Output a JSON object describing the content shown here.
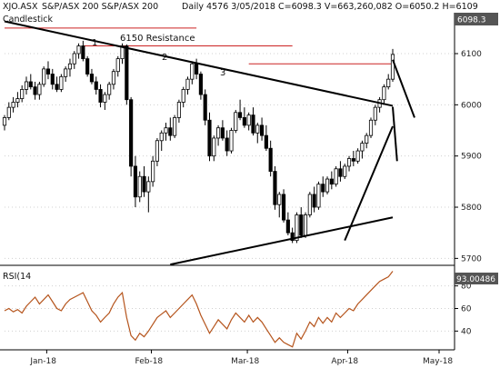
{
  "header": {
    "symbol": "XJO.ASX",
    "security": "S&P/ASX 200 S&P/ASX 200",
    "quote": "Daily 4576 3/05/2018 C=6098.3 V=663,260,082 O=6050.2 H=6109",
    "panel_label": "Candlestick"
  },
  "price_badge": "6098.3",
  "rsi_badge": "93.00486",
  "rsi_label": "RSI(14",
  "annotations": {
    "resistance_label": "6150 Resistance",
    "peak_1": "1",
    "peak_2": "2",
    "peak_3": "3"
  },
  "colors": {
    "candle": "#000000",
    "rsi_line": "#b5541c",
    "resistance_lines": "#cc2222",
    "badge_bg": "#555555",
    "grid_dots": "#d0d0d0"
  },
  "chart_data": [
    {
      "type": "candlestick",
      "title": "Candlestick",
      "y_ticks": [
        6100,
        6000,
        5900,
        5800,
        5700
      ],
      "ylim": [
        5690,
        6155
      ],
      "x_ticks": [
        "Jan-18",
        "Feb-18",
        "Mar-18",
        "Apr-18",
        "May-18"
      ],
      "last_close": 6098.3,
      "horizontal_levels": [
        {
          "label": "6150 Resistance",
          "value": 6150,
          "from_index": 0,
          "to_index": 44
        },
        {
          "label": "2",
          "value": 6115,
          "from_index": 18,
          "to_index": 66
        },
        {
          "label": "3",
          "value": 6080,
          "from_index": 56,
          "to_index": 96
        }
      ],
      "trendlines": [
        {
          "from_index": 0,
          "from": 6163,
          "to_index": 96,
          "to": 5998
        },
        {
          "from_index": 38,
          "from": 5688,
          "to_index": 97,
          "to": 5780
        },
        {
          "from_index": 78,
          "from": 5735,
          "to_index": 98,
          "to": 5958
        },
        {
          "from_index": 90,
          "from": 5890,
          "to_index": 98,
          "to": 5996
        },
        {
          "from_index": 94,
          "from": 5975,
          "to_index": 98,
          "to": 6088
        }
      ],
      "candles": [
        [
          5960,
          5980,
          5950,
          5975
        ],
        [
          5975,
          6005,
          5970,
          5995
        ],
        [
          5995,
          6015,
          5985,
          6005
        ],
        [
          6005,
          6025,
          5995,
          6012
        ],
        [
          6012,
          6038,
          6005,
          6030
        ],
        [
          6030,
          6055,
          6020,
          6045
        ],
        [
          6045,
          6060,
          6030,
          6035
        ],
        [
          6035,
          6045,
          6010,
          6020
        ],
        [
          6020,
          6045,
          6010,
          6040
        ],
        [
          6040,
          6075,
          6035,
          6070
        ],
        [
          6070,
          6085,
          6050,
          6060
        ],
        [
          6060,
          6070,
          6030,
          6040
        ],
        [
          6040,
          6055,
          6025,
          6030
        ],
        [
          6030,
          6060,
          6025,
          6055
        ],
        [
          6055,
          6075,
          6045,
          6070
        ],
        [
          6070,
          6090,
          6055,
          6080
        ],
        [
          6080,
          6105,
          6070,
          6100
        ],
        [
          6100,
          6120,
          6090,
          6115
        ],
        [
          6115,
          6125,
          6085,
          6090
        ],
        [
          6090,
          6095,
          6055,
          6060
        ],
        [
          6060,
          6070,
          6040,
          6045
        ],
        [
          6045,
          6055,
          6020,
          6030
        ],
        [
          6030,
          6040,
          5995,
          6005
        ],
        [
          6005,
          6025,
          5990,
          6020
        ],
        [
          6020,
          6045,
          6010,
          6040
        ],
        [
          6040,
          6070,
          6030,
          6065
        ],
        [
          6065,
          6095,
          6055,
          6090
        ],
        [
          6090,
          6120,
          6080,
          6115
        ],
        [
          6115,
          6118,
          6000,
          6010
        ],
        [
          6010,
          6015,
          5860,
          5880
        ],
        [
          5880,
          5900,
          5800,
          5820
        ],
        [
          5820,
          5870,
          5810,
          5860
        ],
        [
          5860,
          5880,
          5820,
          5830
        ],
        [
          5830,
          5860,
          5790,
          5850
        ],
        [
          5850,
          5900,
          5840,
          5890
        ],
        [
          5890,
          5935,
          5880,
          5930
        ],
        [
          5930,
          5950,
          5910,
          5945
        ],
        [
          5945,
          5965,
          5930,
          5955
        ],
        [
          5955,
          5975,
          5930,
          5940
        ],
        [
          5940,
          5980,
          5935,
          5975
        ],
        [
          5975,
          6010,
          5965,
          6005
        ],
        [
          6005,
          6035,
          5995,
          6030
        ],
        [
          6030,
          6055,
          6020,
          6050
        ],
        [
          6050,
          6085,
          6040,
          6080
        ],
        [
          6080,
          6090,
          6050,
          6060
        ],
        [
          6060,
          6065,
          6010,
          6020
        ],
        [
          6020,
          6030,
          5960,
          5970
        ],
        [
          5970,
          5985,
          5890,
          5900
        ],
        [
          5900,
          5940,
          5890,
          5935
        ],
        [
          5935,
          5960,
          5920,
          5955
        ],
        [
          5955,
          5970,
          5930,
          5935
        ],
        [
          5935,
          5950,
          5900,
          5910
        ],
        [
          5910,
          5955,
          5905,
          5950
        ],
        [
          5950,
          5990,
          5945,
          5985
        ],
        [
          5985,
          6010,
          5970,
          5975
        ],
        [
          5975,
          5995,
          5955,
          5960
        ],
        [
          5960,
          5985,
          5950,
          5980
        ],
        [
          5980,
          5995,
          5940,
          5945
        ],
        [
          5945,
          5965,
          5925,
          5960
        ],
        [
          5960,
          5975,
          5930,
          5940
        ],
        [
          5940,
          5960,
          5910,
          5915
        ],
        [
          5915,
          5930,
          5860,
          5870
        ],
        [
          5870,
          5880,
          5795,
          5805
        ],
        [
          5805,
          5830,
          5780,
          5825
        ],
        [
          5825,
          5835,
          5770,
          5775
        ],
        [
          5775,
          5790,
          5745,
          5750
        ],
        [
          5750,
          5760,
          5730,
          5735
        ],
        [
          5735,
          5790,
          5730,
          5785
        ],
        [
          5785,
          5800,
          5740,
          5745
        ],
        [
          5745,
          5790,
          5740,
          5785
        ],
        [
          5785,
          5830,
          5780,
          5825
        ],
        [
          5825,
          5840,
          5790,
          5800
        ],
        [
          5800,
          5850,
          5795,
          5845
        ],
        [
          5845,
          5860,
          5820,
          5830
        ],
        [
          5830,
          5860,
          5825,
          5855
        ],
        [
          5855,
          5870,
          5835,
          5845
        ],
        [
          5845,
          5880,
          5840,
          5875
        ],
        [
          5875,
          5890,
          5850,
          5860
        ],
        [
          5860,
          5885,
          5855,
          5880
        ],
        [
          5880,
          5900,
          5870,
          5895
        ],
        [
          5895,
          5910,
          5880,
          5890
        ],
        [
          5890,
          5915,
          5885,
          5910
        ],
        [
          5910,
          5930,
          5895,
          5925
        ],
        [
          5925,
          5945,
          5915,
          5940
        ],
        [
          5940,
          5975,
          5935,
          5970
        ],
        [
          5970,
          6000,
          5960,
          5995
        ],
        [
          5995,
          6015,
          5985,
          6010
        ],
        [
          6010,
          6040,
          6000,
          6035
        ],
        [
          6035,
          6060,
          6030,
          6050
        ],
        [
          6050,
          6109,
          6045,
          6098.3
        ]
      ]
    },
    {
      "type": "line",
      "title": "RSI(14",
      "y_ticks": [
        80,
        60,
        40
      ],
      "ylim": [
        25,
        95
      ],
      "last_value": 93.00486,
      "values": [
        58,
        60,
        57,
        59,
        56,
        62,
        66,
        70,
        64,
        68,
        72,
        66,
        60,
        58,
        64,
        68,
        70,
        72,
        74,
        66,
        58,
        54,
        48,
        52,
        56,
        64,
        70,
        74,
        52,
        36,
        32,
        38,
        35,
        40,
        46,
        52,
        55,
        58,
        52,
        56,
        60,
        64,
        68,
        72,
        64,
        54,
        46,
        38,
        44,
        50,
        46,
        42,
        50,
        56,
        52,
        48,
        54,
        48,
        52,
        48,
        42,
        36,
        30,
        34,
        30,
        28,
        26,
        38,
        33,
        40,
        48,
        44,
        52,
        47,
        52,
        48,
        56,
        52,
        56,
        60,
        58,
        64,
        68,
        72,
        76,
        80,
        84,
        86,
        88,
        93
      ]
    }
  ]
}
